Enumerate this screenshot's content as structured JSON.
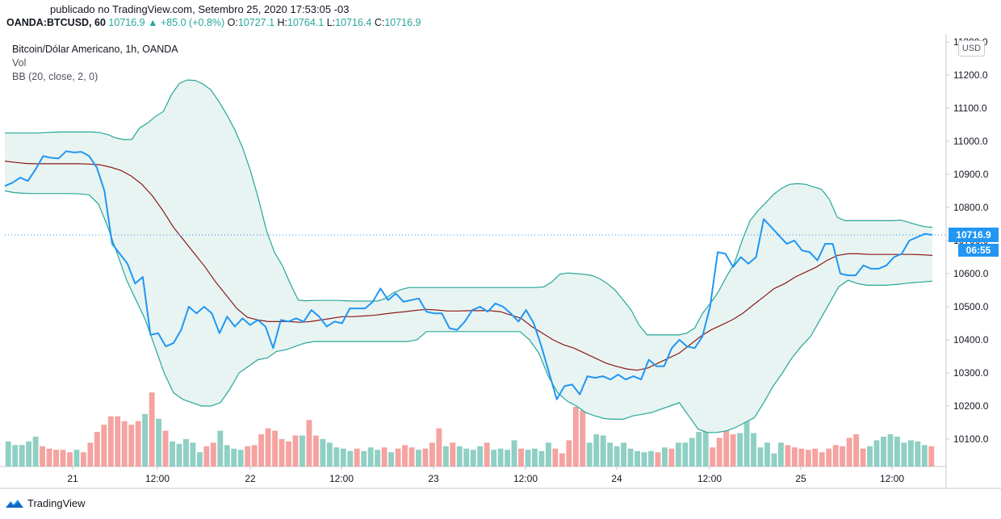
{
  "header": {
    "published": "publicado no TradingView.com, Setembro 25, 2020 17:53:05 -03",
    "symbol": "OANDA:BTCUSD, 60",
    "last": "10716.9",
    "arrow": "▲",
    "change": "+85.0 (+0.8%)",
    "o_label": "O:",
    "o_val": "10727.1",
    "h_label": "H:",
    "h_val": "10764.1",
    "l_label": "L:",
    "l_val": "10716.4",
    "c_label": "C:",
    "c_val": "10716.9"
  },
  "legend": {
    "title": "Bitcoin/Dólar Americano, 1h, OANDA",
    "vol": "Vol",
    "bb": "BB (20, close, 2, 0)"
  },
  "price_axis": {
    "currency": "USD",
    "last_label": "10716.9",
    "countdown": "06:55"
  },
  "footer": {
    "brand": "TradingView"
  },
  "colors": {
    "price_line": "#2196f3",
    "bb_band": "#26a69a",
    "bb_basis": "#8b1a1a",
    "fill": "#e8f4f2",
    "vol_up": "#8fcfc4",
    "vol_down": "#f4a3a0"
  },
  "chart_data": {
    "type": "line",
    "ylim": [
      10030,
      11300
    ],
    "yticks": [
      "10100.0",
      "10200.0",
      "10300.0",
      "10400.0",
      "10500.0",
      "10600.0",
      "10700.0",
      "10800.0",
      "10900.0",
      "11000.0",
      "11100.0",
      "11200.0",
      "11300.0"
    ],
    "xticks": [
      "21",
      "12:00",
      "22",
      "12:00",
      "23",
      "12:00",
      "24",
      "12:00",
      "25",
      "12:00"
    ],
    "series": [
      {
        "role": "price",
        "values": [
          10865,
          10875,
          10890,
          10880,
          10915,
          10955,
          10950,
          10948,
          10970,
          10966,
          10968,
          10955,
          10920,
          10850,
          10690,
          10660,
          10630,
          10570,
          10590,
          10415,
          10420,
          10380,
          10390,
          10430,
          10500,
          10480,
          10500,
          10480,
          10420,
          10470,
          10440,
          10465,
          10445,
          10460,
          10440,
          10375,
          10460,
          10455,
          10465,
          10455,
          10490,
          10470,
          10440,
          10455,
          10450,
          10495,
          10495,
          10495,
          10515,
          10555,
          10520,
          10540,
          10515,
          10520,
          10525,
          10485,
          10480,
          10480,
          10435,
          10430,
          10455,
          10490,
          10500,
          10485,
          10510,
          10500,
          10480,
          10455,
          10490,
          10450,
          10380,
          10300,
          10220,
          10260,
          10265,
          10235,
          10290,
          10285,
          10290,
          10280,
          10295,
          10280,
          10290,
          10280,
          10340,
          10320,
          10320,
          10375,
          10400,
          10380,
          10375,
          10410,
          10500,
          10665,
          10660,
          10620,
          10650,
          10630,
          10650,
          10765,
          10740,
          10715,
          10690,
          10700,
          10670,
          10665,
          10640,
          10690,
          10690,
          10600,
          10595,
          10595,
          10625,
          10615,
          10615,
          10625,
          10650,
          10660,
          10700,
          10710,
          10720,
          10717
        ]
      },
      {
        "role": "bb_upper",
        "values": [
          11025,
          11025,
          11025,
          11025,
          11025,
          11026,
          11027,
          11028,
          11028,
          11028,
          11028,
          11028,
          11026,
          11020,
          11010,
          11005,
          11005,
          11040,
          11055,
          11075,
          11090,
          11140,
          11175,
          11185,
          11184,
          11173,
          11155,
          11120,
          11080,
          11035,
          10980,
          10910,
          10825,
          10730,
          10665,
          10625,
          10570,
          10520,
          10518,
          10519,
          10519,
          10519,
          10519,
          10518,
          10517,
          10517,
          10517,
          10517,
          10525,
          10542,
          10552,
          10558,
          10558,
          10558,
          10558,
          10558,
          10558,
          10558,
          10558,
          10558,
          10558,
          10558,
          10558,
          10558,
          10558,
          10558,
          10558,
          10558,
          10560,
          10575,
          10598,
          10602,
          10600,
          10598,
          10595,
          10585,
          10570,
          10550,
          10520,
          10490,
          10445,
          10415,
          10415,
          10415,
          10415,
          10415,
          10420,
          10435,
          10480,
          10510,
          10545,
          10590,
          10630,
          10700,
          10760,
          10790,
          10815,
          10840,
          10858,
          10870,
          10872,
          10870,
          10862,
          10855,
          10825,
          10770,
          10760,
          10760,
          10760,
          10760,
          10760,
          10760,
          10760,
          10762,
          10755,
          10748,
          10742,
          10740
        ]
      },
      {
        "role": "bb_basis",
        "values": [
          10940,
          10936,
          10933,
          10932,
          10932,
          10932,
          10932,
          10932,
          10931,
          10929,
          10922,
          10912,
          10895,
          10870,
          10835,
          10790,
          10740,
          10700,
          10660,
          10620,
          10575,
          10535,
          10495,
          10468,
          10460,
          10455,
          10455,
          10455,
          10453,
          10455,
          10460,
          10465,
          10470,
          10470,
          10472,
          10474,
          10478,
          10482,
          10485,
          10489,
          10492,
          10490,
          10487,
          10487,
          10488,
          10488,
          10488,
          10485,
          10475,
          10465,
          10440,
          10420,
          10400,
          10385,
          10375,
          10360,
          10345,
          10330,
          10320,
          10312,
          10308,
          10315,
          10330,
          10345,
          10360,
          10385,
          10410,
          10430,
          10445,
          10460,
          10480,
          10505,
          10530,
          10555,
          10570,
          10590,
          10605,
          10620,
          10640,
          10655,
          10660,
          10660,
          10658,
          10658,
          10658,
          10658,
          10658,
          10657,
          10655
        ]
      },
      {
        "role": "bb_lower",
        "values": [
          10850,
          10845,
          10843,
          10842,
          10842,
          10842,
          10842,
          10842,
          10841,
          10838,
          10810,
          10740,
          10660,
          10580,
          10520,
          10460,
          10380,
          10300,
          10240,
          10220,
          10210,
          10200,
          10200,
          10210,
          10250,
          10300,
          10320,
          10340,
          10345,
          10365,
          10370,
          10380,
          10390,
          10395,
          10395,
          10395,
          10395,
          10395,
          10395,
          10395,
          10395,
          10395,
          10395,
          10395,
          10400,
          10425,
          10425,
          10425,
          10425,
          10425,
          10425,
          10425,
          10425,
          10425,
          10425,
          10425,
          10400,
          10360,
          10290,
          10240,
          10215,
          10200,
          10180,
          10170,
          10162,
          10160,
          10160,
          10170,
          10175,
          10180,
          10190,
          10200,
          10210,
          10170,
          10130,
          10120,
          10120,
          10125,
          10135,
          10150,
          10165,
          10210,
          10260,
          10300,
          10345,
          10380,
          10410,
          10460,
          10510,
          10560,
          10580,
          10570,
          10565,
          10565,
          10565,
          10567,
          10570,
          10573,
          10575,
          10577
        ]
      }
    ],
    "volume": [
      [
        0.21,
        "u"
      ],
      [
        0.18,
        "u"
      ],
      [
        0.18,
        "u"
      ],
      [
        0.21,
        "u"
      ],
      [
        0.25,
        "u"
      ],
      [
        0.17,
        "d"
      ],
      [
        0.15,
        "d"
      ],
      [
        0.14,
        "d"
      ],
      [
        0.14,
        "d"
      ],
      [
        0.12,
        "d"
      ],
      [
        0.14,
        "u"
      ],
      [
        0.12,
        "d"
      ],
      [
        0.2,
        "d"
      ],
      [
        0.29,
        "d"
      ],
      [
        0.35,
        "d"
      ],
      [
        0.42,
        "d"
      ],
      [
        0.42,
        "d"
      ],
      [
        0.38,
        "d"
      ],
      [
        0.35,
        "d"
      ],
      [
        0.38,
        "d"
      ],
      [
        0.44,
        "u"
      ],
      [
        0.62,
        "d"
      ],
      [
        0.4,
        "u"
      ],
      [
        0.3,
        "d"
      ],
      [
        0.21,
        "u"
      ],
      [
        0.19,
        "u"
      ],
      [
        0.23,
        "u"
      ],
      [
        0.2,
        "u"
      ],
      [
        0.12,
        "u"
      ],
      [
        0.17,
        "d"
      ],
      [
        0.2,
        "d"
      ],
      [
        0.3,
        "u"
      ],
      [
        0.18,
        "u"
      ],
      [
        0.15,
        "u"
      ],
      [
        0.14,
        "u"
      ],
      [
        0.17,
        "d"
      ],
      [
        0.18,
        "d"
      ],
      [
        0.27,
        "d"
      ],
      [
        0.32,
        "d"
      ],
      [
        0.3,
        "d"
      ],
      [
        0.23,
        "d"
      ],
      [
        0.21,
        "d"
      ],
      [
        0.26,
        "d"
      ],
      [
        0.26,
        "u"
      ],
      [
        0.39,
        "d"
      ],
      [
        0.26,
        "d"
      ],
      [
        0.23,
        "u"
      ],
      [
        0.2,
        "u"
      ],
      [
        0.16,
        "u"
      ],
      [
        0.15,
        "u"
      ],
      [
        0.13,
        "u"
      ],
      [
        0.15,
        "d"
      ],
      [
        0.13,
        "u"
      ],
      [
        0.16,
        "u"
      ],
      [
        0.14,
        "u"
      ],
      [
        0.16,
        "d"
      ],
      [
        0.12,
        "u"
      ],
      [
        0.15,
        "d"
      ],
      [
        0.18,
        "d"
      ],
      [
        0.16,
        "d"
      ],
      [
        0.14,
        "u"
      ],
      [
        0.15,
        "d"
      ],
      [
        0.2,
        "d"
      ],
      [
        0.32,
        "d"
      ],
      [
        0.17,
        "u"
      ],
      [
        0.2,
        "d"
      ],
      [
        0.17,
        "u"
      ],
      [
        0.15,
        "u"
      ],
      [
        0.14,
        "u"
      ],
      [
        0.17,
        "u"
      ],
      [
        0.2,
        "d"
      ],
      [
        0.14,
        "u"
      ],
      [
        0.15,
        "u"
      ],
      [
        0.14,
        "u"
      ],
      [
        0.22,
        "u"
      ],
      [
        0.15,
        "d"
      ],
      [
        0.14,
        "u"
      ],
      [
        0.15,
        "u"
      ],
      [
        0.13,
        "u"
      ],
      [
        0.2,
        "u"
      ],
      [
        0.15,
        "d"
      ],
      [
        0.11,
        "d"
      ],
      [
        0.22,
        "d"
      ],
      [
        0.5,
        "d"
      ],
      [
        0.47,
        "d"
      ],
      [
        0.2,
        "u"
      ],
      [
        0.27,
        "u"
      ],
      [
        0.26,
        "u"
      ],
      [
        0.2,
        "u"
      ],
      [
        0.17,
        "u"
      ],
      [
        0.2,
        "u"
      ],
      [
        0.15,
        "u"
      ],
      [
        0.13,
        "u"
      ],
      [
        0.12,
        "u"
      ],
      [
        0.13,
        "u"
      ],
      [
        0.12,
        "d"
      ],
      [
        0.16,
        "u"
      ],
      [
        0.15,
        "d"
      ],
      [
        0.2,
        "u"
      ],
      [
        0.2,
        "u"
      ],
      [
        0.24,
        "u"
      ],
      [
        0.29,
        "u"
      ],
      [
        0.35,
        "u"
      ],
      [
        0.16,
        "d"
      ],
      [
        0.24,
        "d"
      ],
      [
        0.34,
        "d"
      ],
      [
        0.27,
        "d"
      ],
      [
        0.28,
        "u"
      ],
      [
        0.39,
        "u"
      ],
      [
        0.28,
        "u"
      ],
      [
        0.16,
        "u"
      ],
      [
        0.2,
        "u"
      ],
      [
        0.11,
        "u"
      ],
      [
        0.2,
        "u"
      ],
      [
        0.18,
        "d"
      ],
      [
        0.16,
        "d"
      ],
      [
        0.15,
        "d"
      ],
      [
        0.14,
        "d"
      ],
      [
        0.15,
        "d"
      ],
      [
        0.12,
        "d"
      ],
      [
        0.15,
        "d"
      ],
      [
        0.18,
        "d"
      ],
      [
        0.17,
        "d"
      ],
      [
        0.24,
        "d"
      ],
      [
        0.27,
        "d"
      ],
      [
        0.15,
        "d"
      ],
      [
        0.17,
        "u"
      ],
      [
        0.22,
        "u"
      ],
      [
        0.25,
        "u"
      ],
      [
        0.27,
        "u"
      ],
      [
        0.25,
        "u"
      ],
      [
        0.2,
        "u"
      ],
      [
        0.22,
        "u"
      ],
      [
        0.21,
        "u"
      ],
      [
        0.18,
        "u"
      ],
      [
        0.17,
        "d"
      ]
    ]
  }
}
